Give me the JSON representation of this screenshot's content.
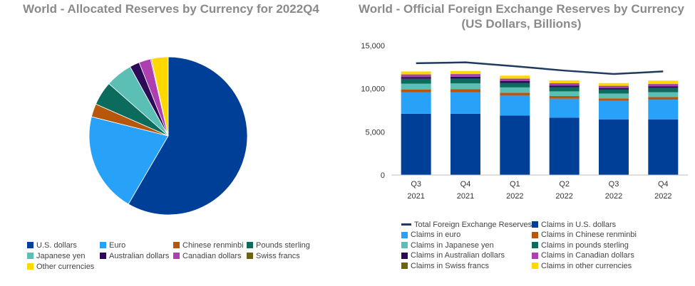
{
  "colors": {
    "usd": "#003f98",
    "eur": "#27a2f8",
    "cny": "#b7570c",
    "gbp": "#0b6b5c",
    "jpy": "#5cbfb6",
    "aud": "#2d0a57",
    "cad": "#ad3fb0",
    "chf": "#6e6212",
    "other": "#ffd800",
    "total": "#1f3b5e",
    "axis": "#333333",
    "grid": "#cccccc"
  },
  "chart_data": [
    {
      "type": "pie",
      "title": "World - Allocated Reserves by Currency for 2022Q4",
      "slices": [
        {
          "name": "U.S. dollars",
          "key": "usd",
          "value": 58.4
        },
        {
          "name": "Euro",
          "key": "eur",
          "value": 20.5
        },
        {
          "name": "Chinese renminbi",
          "key": "cny",
          "value": 2.7
        },
        {
          "name": "Pounds sterling",
          "key": "gbp",
          "value": 4.9
        },
        {
          "name": "Japanese yen",
          "key": "jpy",
          "value": 5.5
        },
        {
          "name": "Australian dollars",
          "key": "aud",
          "value": 2.0
        },
        {
          "name": "Canadian dollars",
          "key": "cad",
          "value": 2.4
        },
        {
          "name": "Swiss francs",
          "key": "chf",
          "value": 0.2
        },
        {
          "name": "Other currencies",
          "key": "other",
          "value": 3.4
        }
      ],
      "legend": [
        "U.S. dollars",
        "Euro",
        "Chinese renminbi",
        "Pounds sterling",
        "Japanese yen",
        "Australian dollars",
        "Canadian dollars",
        "Swiss francs",
        "Other currencies"
      ]
    },
    {
      "type": "bar",
      "stacked": true,
      "title_line1": "World - Official Foreign Exchange Reserves by Currency",
      "title_line2": "(US Dollars, Billions)",
      "categories": [
        [
          "Q3",
          "2021"
        ],
        [
          "Q4",
          "2021"
        ],
        [
          "Q1",
          "2022"
        ],
        [
          "Q2",
          "2022"
        ],
        [
          "Q3",
          "2022"
        ],
        [
          "Q4",
          "2022"
        ]
      ],
      "ylim": [
        0,
        15000
      ],
      "yticks": [
        0,
        5000,
        10000,
        15000
      ],
      "ytick_labels": [
        "0",
        "5,000",
        "10,000",
        "15,000"
      ],
      "series": [
        {
          "name": "Claims in U.S. dollars",
          "key": "usd",
          "values": [
            7100,
            7100,
            6900,
            6650,
            6450,
            6450
          ]
        },
        {
          "name": "Claims in euro",
          "key": "eur",
          "values": [
            2500,
            2500,
            2300,
            2200,
            2150,
            2280
          ]
        },
        {
          "name": "Claims in Chinese renminbi",
          "key": "cny",
          "values": [
            320,
            330,
            330,
            300,
            280,
            300
          ]
        },
        {
          "name": "Claims in Japanese yen",
          "key": "jpy",
          "values": [
            660,
            680,
            620,
            540,
            560,
            560
          ]
        },
        {
          "name": "Claims in pounds sterling",
          "key": "gbp",
          "values": [
            570,
            560,
            520,
            490,
            460,
            490
          ]
        },
        {
          "name": "Claims in Australian dollars",
          "key": "aud",
          "values": [
            210,
            220,
            210,
            190,
            180,
            210
          ]
        },
        {
          "name": "Claims in Canadian dollars",
          "key": "cad",
          "values": [
            290,
            300,
            280,
            260,
            240,
            250
          ]
        },
        {
          "name": "Claims in Swiss francs",
          "key": "chf",
          "values": [
            20,
            20,
            20,
            20,
            20,
            20
          ]
        },
        {
          "name": "Claims in other currencies",
          "key": "other",
          "values": [
            330,
            340,
            330,
            320,
            310,
            380
          ]
        }
      ],
      "line": {
        "name": "Total Foreign Exchange Reserves",
        "key": "total",
        "values": [
          12950,
          13050,
          12600,
          12100,
          11700,
          12000
        ]
      },
      "legend": [
        {
          "name": "Total Foreign Exchange Reserves",
          "key": "total",
          "kind": "line"
        },
        {
          "name": "Claims in U.S. dollars",
          "key": "usd",
          "kind": "box"
        },
        {
          "name": "Claims in euro",
          "key": "eur",
          "kind": "box"
        },
        {
          "name": "Claims in Chinese renminbi",
          "key": "cny",
          "kind": "box"
        },
        {
          "name": "Claims in Japanese yen",
          "key": "jpy",
          "kind": "box"
        },
        {
          "name": "Claims in pounds sterling",
          "key": "gbp",
          "kind": "box"
        },
        {
          "name": "Claims in Australian dollars",
          "key": "aud",
          "kind": "box"
        },
        {
          "name": "Claims in Canadian dollars",
          "key": "cad",
          "kind": "box"
        },
        {
          "name": "Claims in Swiss francs",
          "key": "chf",
          "kind": "box"
        },
        {
          "name": "Claims in other currencies",
          "key": "other",
          "kind": "box"
        }
      ]
    }
  ]
}
